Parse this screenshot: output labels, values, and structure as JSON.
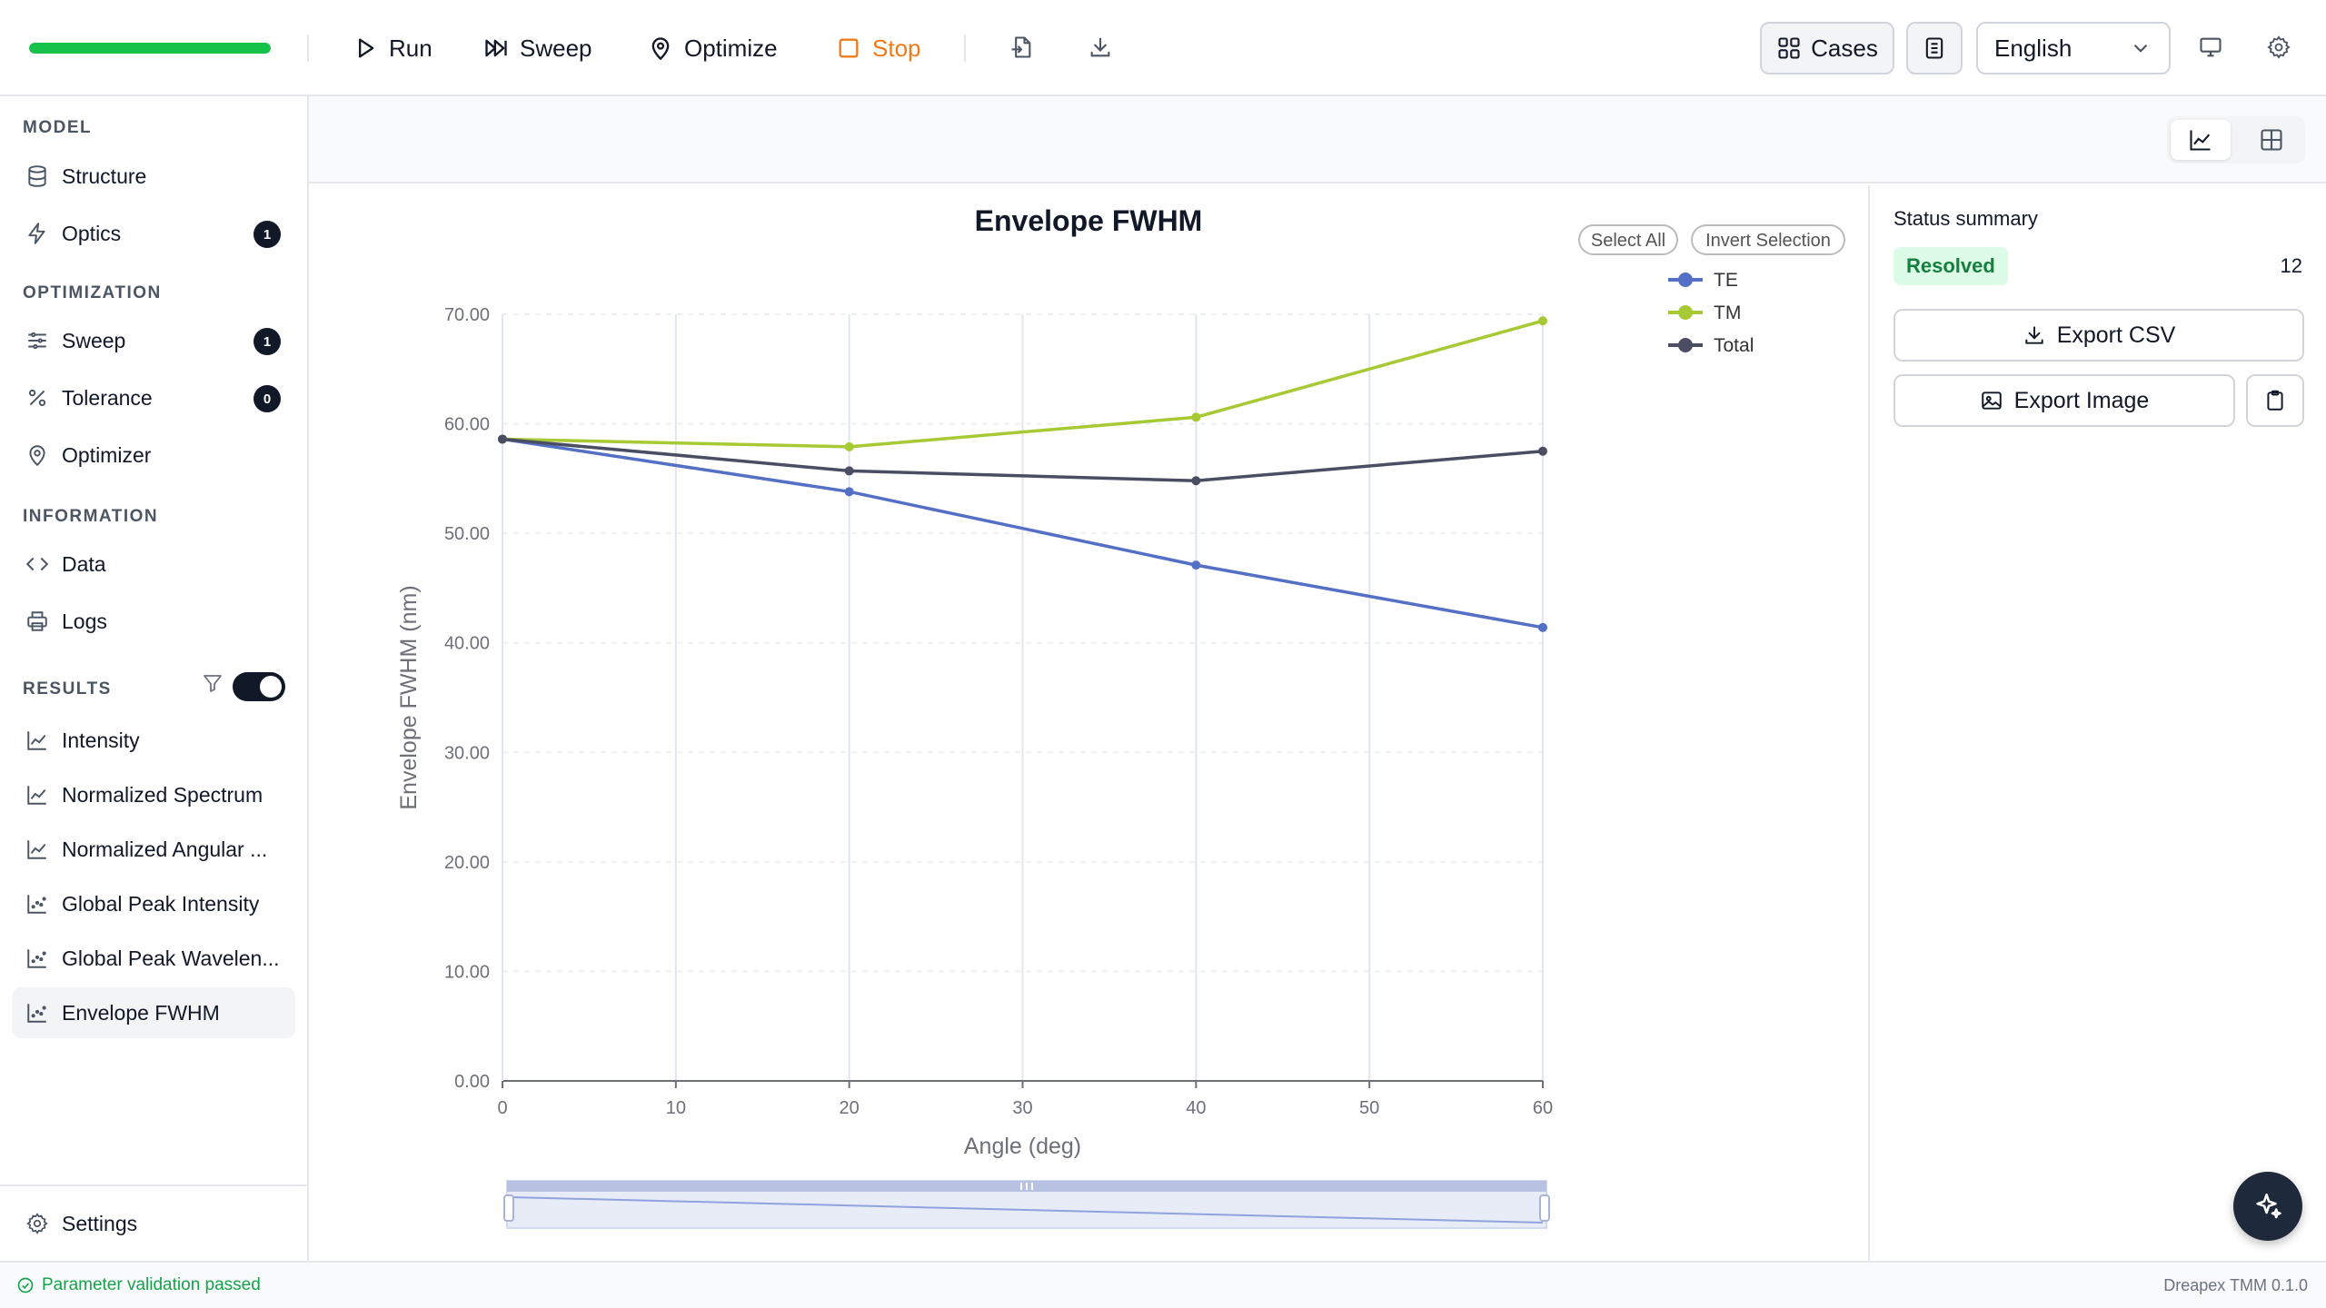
{
  "toolbar": {
    "progress_fraction": 1.0,
    "progress_color": "#16c24a",
    "run_label": "Run",
    "sweep_label": "Sweep",
    "optimize_label": "Optimize",
    "stop_label": "Stop",
    "import_icon": "file-import-icon",
    "download_icon": "download-icon",
    "cases_label": "Cases",
    "language": "English"
  },
  "sidebar": {
    "model_section": "MODEL",
    "structure": "Structure",
    "optics": "Optics",
    "optics_badge": "1",
    "optimization_section": "OPTIMIZATION",
    "sweep": "Sweep",
    "sweep_badge": "1",
    "tolerance": "Tolerance",
    "tolerance_badge": "0",
    "optimizer": "Optimizer",
    "information_section": "INFORMATION",
    "data": "Data",
    "logs": "Logs",
    "results_section": "RESULTS",
    "results_toggle_on": true,
    "intensity": "Intensity",
    "normalized_spectrum": "Normalized Spectrum",
    "normalized_angular": "Normalized Angular ...",
    "global_peak_intensity": "Global Peak Intensity",
    "global_peak_wavelength": "Global Peak Wavelen...",
    "envelope_fwhm": "Envelope FWHM",
    "settings": "Settings"
  },
  "chart_controls": {
    "select_all": "Select All",
    "invert_selection": "Invert Selection"
  },
  "chart_data": {
    "type": "line",
    "title": "Envelope FWHM",
    "xlabel": "Angle (deg)",
    "ylabel": "Envelope FWHM (nm)",
    "xlim": [
      0,
      60
    ],
    "ylim": [
      0,
      70
    ],
    "xticks": [
      "0",
      "10",
      "20",
      "30",
      "40",
      "50",
      "60"
    ],
    "yticks": [
      "0.00",
      "10.00",
      "20.00",
      "30.00",
      "40.00",
      "50.00",
      "60.00",
      "70.00"
    ],
    "grid": true,
    "legend_position": "top-right",
    "x": [
      0,
      20,
      40,
      60
    ],
    "series": [
      {
        "name": "TE",
        "color": "#5470c6",
        "values": [
          58.6,
          53.8,
          47.1,
          41.4
        ]
      },
      {
        "name": "TM",
        "color": "#a6c934",
        "values": [
          58.6,
          57.9,
          60.6,
          69.4
        ]
      },
      {
        "name": "Total",
        "color": "#4b4d63",
        "values": [
          58.6,
          55.7,
          54.8,
          57.5
        ]
      }
    ],
    "zoom_range": [
      0,
      100
    ]
  },
  "status_panel": {
    "title": "Status summary",
    "status": "Resolved",
    "count": "12",
    "export_csv": "Export CSV",
    "export_image": "Export Image",
    "copy_icon": "clipboard-icon"
  },
  "statusbar": {
    "message": "Parameter validation passed",
    "version": "Dreapex TMM 0.1.0"
  }
}
